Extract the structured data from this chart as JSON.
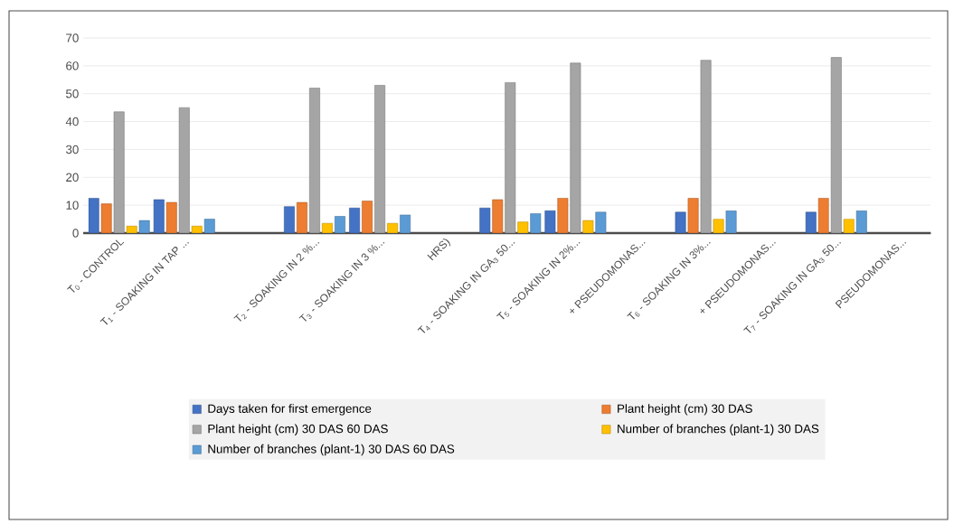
{
  "chart_data": {
    "type": "bar",
    "categories": [
      "T$_{0}$ - CONTROL",
      "T$_{1}$ - SOAKING IN TAP ...",
      null,
      "T$_{2}$ - SOAKING IN 2 %...",
      "T$_{3}$ - SOAKING IN 3 %...",
      "HRS)",
      "T$_{4}$ - SOAKING IN GA$_{3}$ 50...",
      "T$_{5}$ - SOAKING IN 2%...",
      "+ PSEUDOMONAS...",
      "T$_{6}$ - SOAKING IN 3%...",
      "+ PSEUDOMONAS...",
      "T$_{7}$ - SOAKING IN GA$_{3}$ 50...",
      "PSEUDOMONAS..."
    ],
    "series": [
      {
        "name": "Days taken for first emergence",
        "color": "#4472c4",
        "values": [
          12.5,
          12,
          null,
          9.5,
          9,
          null,
          9,
          8,
          null,
          7.5,
          null,
          7.5,
          null
        ]
      },
      {
        "name": "Plant height (cm) 30 DAS",
        "color": "#ed7d31",
        "values": [
          10.5,
          11,
          null,
          11,
          11.5,
          null,
          12,
          12.5,
          null,
          12.5,
          null,
          12.5,
          null
        ]
      },
      {
        "name": "Plant height (cm) 30 DAS 60 DAS",
        "color": "#a5a5a5",
        "values": [
          43.5,
          45,
          null,
          52,
          53,
          null,
          54,
          61,
          null,
          62,
          null,
          63,
          null
        ]
      },
      {
        "name": "Number of branches (plant-1) 30 DAS",
        "color": "#ffc000",
        "values": [
          2.5,
          2.5,
          null,
          3.5,
          3.5,
          null,
          4,
          4.5,
          null,
          5,
          null,
          5,
          null
        ]
      },
      {
        "name": "Number of branches (plant-1) 30 DAS 60 DAS",
        "color": "#5b9bd5",
        "values": [
          4.5,
          5,
          null,
          6,
          6.5,
          null,
          7,
          7.5,
          null,
          8,
          null,
          8,
          null
        ]
      }
    ],
    "ylim": [
      0,
      70
    ],
    "yticks": [
      0,
      10,
      20,
      30,
      40,
      50,
      60,
      70
    ],
    "grid": "y",
    "legend": "bottom"
  }
}
